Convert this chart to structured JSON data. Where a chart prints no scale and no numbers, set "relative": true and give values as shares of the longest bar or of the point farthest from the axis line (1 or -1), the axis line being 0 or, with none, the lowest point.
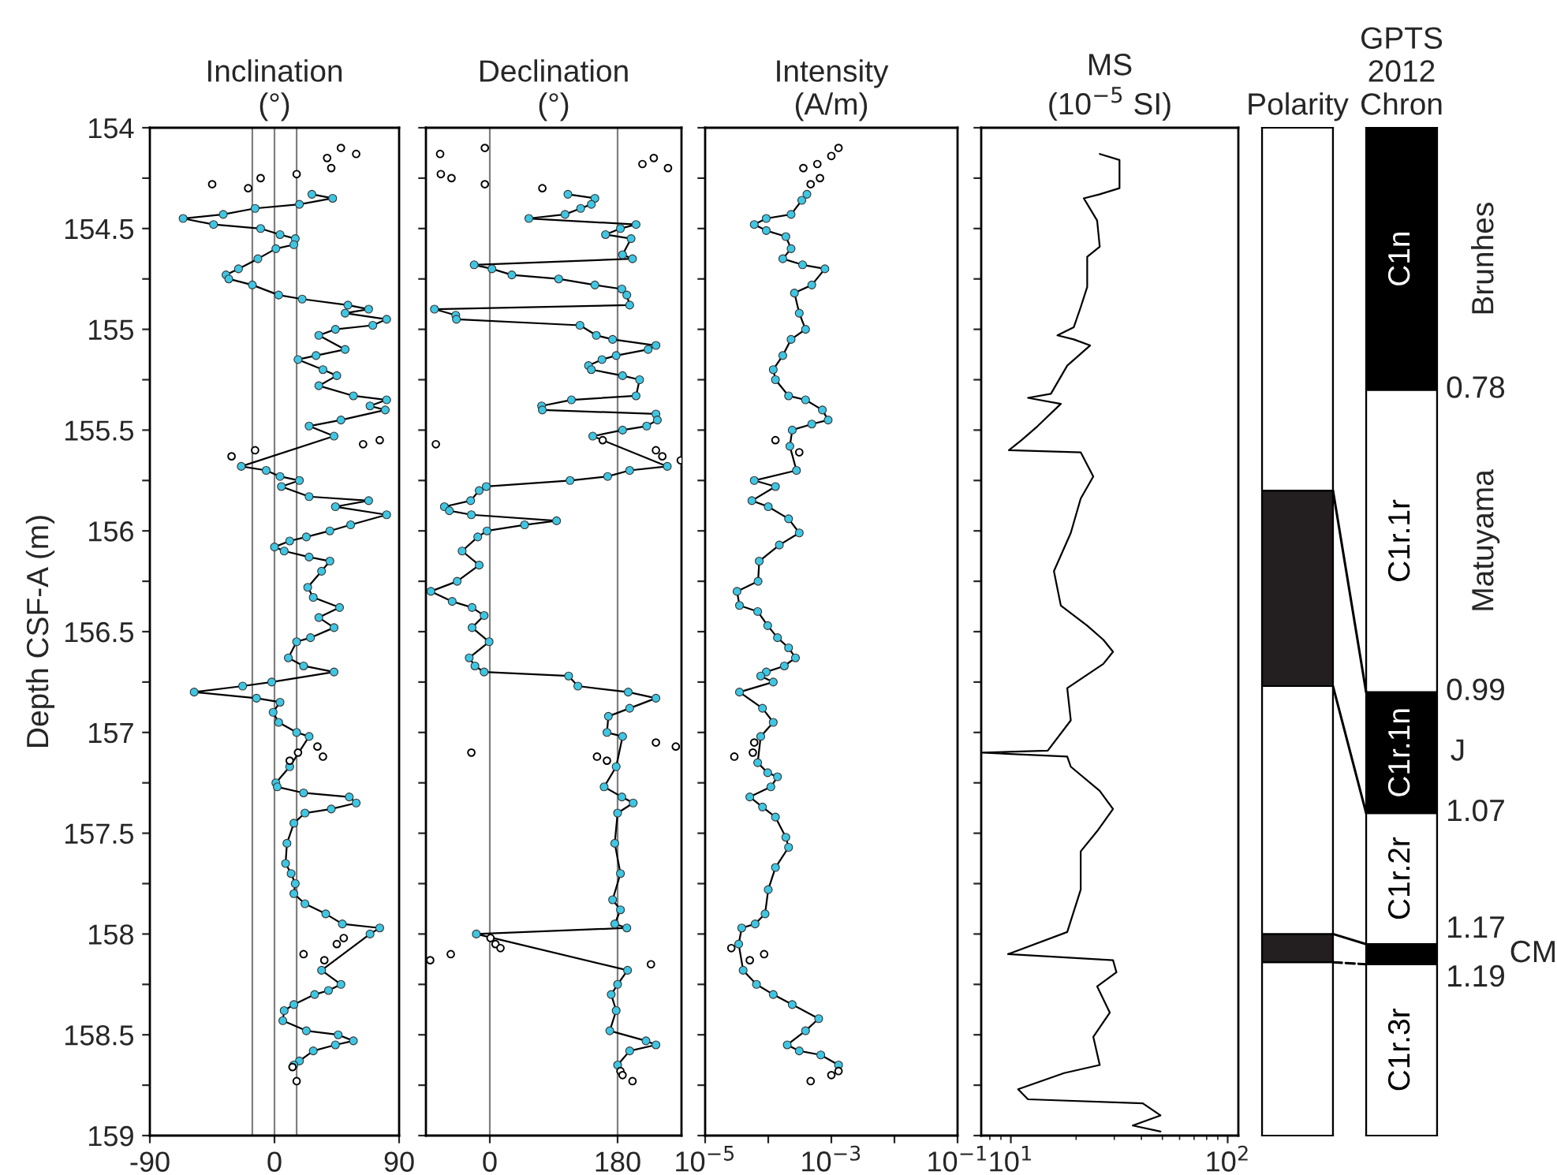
{
  "chart_data": [
    {
      "type": "line",
      "title": "Inclination\n(°)",
      "ylabel": "Depth CSF-A (m)",
      "xlim": [
        -90,
        90
      ],
      "xticks": [
        -90,
        0,
        90
      ],
      "ylim": [
        159,
        154
      ],
      "yticks": [
        154,
        {
          "value": 154.25,
          "label": null
        },
        154.5,
        {
          "value": 154.75,
          "label": null
        },
        155,
        {
          "value": 155.25,
          "label": null
        },
        155.5,
        {
          "value": 155.75,
          "label": null
        },
        156,
        {
          "value": 156.25,
          "label": null
        },
        156.5,
        {
          "value": 156.75,
          "label": null
        },
        157,
        {
          "value": 157.25,
          "label": null
        },
        157.5,
        {
          "value": 157.75,
          "label": null
        },
        158,
        {
          "value": 158.25,
          "label": null
        },
        158.5,
        {
          "value": 158.75,
          "label": null
        },
        159
      ],
      "ref_lines": [
        {
          "axis": "x",
          "value": -16,
          "color": "#808080"
        },
        {
          "axis": "x",
          "value": 0,
          "color": "#808080"
        },
        {
          "axis": "x",
          "value": 16,
          "color": "#808080"
        }
      ],
      "series": [
        {
          "type": "line",
          "color": "#3fc6e3",
          "marker": "circle",
          "x": [
            27,
            42,
            18,
            -14,
            -37,
            -66,
            -44,
            -10,
            4,
            15,
            14,
            1,
            -12,
            -26,
            -35,
            -33,
            -16,
            3,
            20,
            53,
            68,
            51,
            81,
            71,
            44,
            32,
            51,
            30,
            17,
            35,
            45,
            32,
            57,
            81,
            69,
            80,
            48,
            25,
            43,
            -24,
            -6,
            4,
            18,
            5,
            25,
            68,
            44,
            81,
            55,
            40,
            23,
            11,
            0,
            7,
            25,
            40,
            34,
            24,
            28,
            47,
            32,
            43,
            26,
            16,
            10,
            21,
            43,
            -2,
            -23,
            -58,
            -13,
            4,
            -1,
            3,
            16,
            25,
            11,
            1,
            2,
            21,
            54,
            59,
            41,
            22,
            14,
            9,
            8,
            12,
            15,
            14,
            22,
            37,
            49,
            76,
            69,
            34,
            48,
            39,
            29,
            14,
            7,
            6,
            23,
            46,
            57,
            44,
            28,
            18,
            14
          ],
          "values": [
            154.33,
            154.35,
            154.38,
            154.4,
            154.43,
            154.45,
            154.48,
            154.5,
            154.53,
            154.55,
            154.58,
            154.6,
            154.65,
            154.7,
            154.73,
            154.75,
            154.78,
            154.83,
            154.85,
            154.88,
            154.9,
            154.92,
            154.95,
            154.98,
            155.0,
            155.03,
            155.1,
            155.13,
            155.15,
            155.2,
            155.23,
            155.28,
            155.33,
            155.35,
            155.38,
            155.4,
            155.45,
            155.48,
            155.53,
            155.68,
            155.7,
            155.73,
            155.75,
            155.78,
            155.83,
            155.85,
            155.88,
            155.92,
            155.97,
            156.0,
            156.03,
            156.05,
            156.08,
            156.1,
            156.13,
            156.15,
            156.2,
            156.28,
            156.33,
            156.38,
            156.43,
            156.48,
            156.53,
            156.55,
            156.63,
            156.67,
            156.7,
            156.75,
            156.77,
            156.8,
            156.83,
            156.85,
            156.9,
            156.95,
            157.0,
            157.02,
            157.17,
            157.25,
            157.27,
            157.3,
            157.32,
            157.35,
            157.38,
            157.4,
            157.45,
            157.55,
            157.65,
            157.7,
            157.75,
            157.8,
            157.85,
            157.9,
            157.95,
            157.97,
            158.0,
            158.18,
            158.25,
            158.28,
            158.3,
            158.35,
            158.38,
            158.43,
            158.48,
            158.5,
            158.53,
            158.55,
            158.58,
            158.63,
            158.65
          ]
        },
        {
          "type": "scatter",
          "color": "#000000",
          "marker": "circle",
          "x": [
            48,
            59,
            38,
            41,
            16,
            -10,
            -45,
            -19,
            64,
            76,
            -14,
            -31,
            31,
            35,
            17,
            11,
            21,
            45,
            50,
            36,
            13,
            16
          ],
          "values": [
            154.1,
            154.13,
            154.15,
            154.2,
            154.23,
            154.25,
            154.28,
            154.3,
            155.57,
            155.55,
            155.6,
            155.63,
            157.07,
            157.12,
            157.1,
            157.14,
            158.1,
            158.05,
            158.02,
            158.13,
            158.66,
            158.73
          ]
        }
      ]
    },
    {
      "type": "line",
      "title": "Declination\n(°)",
      "xlim": [
        -90,
        270
      ],
      "xticks": [
        0,
        180
      ],
      "ylim": [
        159,
        154
      ],
      "tick_labels": "x",
      "yticks": [
        154,
        {
          "value": 154.25,
          "label": null
        },
        154.5,
        {
          "value": 154.75,
          "label": null
        },
        155,
        {
          "value": 155.25,
          "label": null
        },
        155.5,
        {
          "value": 155.75,
          "label": null
        },
        156,
        {
          "value": 156.25,
          "label": null
        },
        156.5,
        {
          "value": 156.75,
          "label": null
        },
        157,
        {
          "value": 157.25,
          "label": null
        },
        157.5,
        {
          "value": 157.75,
          "label": null
        },
        158,
        {
          "value": 158.25,
          "label": null
        },
        158.5,
        {
          "value": 158.75,
          "label": null
        },
        159
      ],
      "ref_lines": [
        {
          "axis": "x",
          "value": 0,
          "color": "#808080"
        },
        {
          "axis": "x",
          "value": 180,
          "color": "#808080"
        }
      ],
      "series": [
        {
          "type": "line",
          "color": "#3fc6e3",
          "marker": "circle",
          "x": [
            110,
            148,
            143,
            128,
            106,
            55,
            206,
            184,
            163,
            199,
            187,
            201,
            -22,
            3,
            31,
            97,
            148,
            186,
            193,
            197,
            -78,
            -48,
            -47,
            127,
            150,
            173,
            234,
            223,
            178,
            158,
            139,
            143,
            187,
            211,
            206,
            115,
            73,
            74,
            234,
            236,
            221,
            187,
            145,
            250,
            197,
            166,
            113,
            -5,
            -15,
            -27,
            -64,
            -57,
            -26,
            94,
            49,
            -4,
            -17,
            -39,
            -15,
            -46,
            -83,
            -53,
            -25,
            -8,
            -25,
            -1,
            -29,
            -21,
            -8,
            111,
            124,
            195,
            234,
            197,
            167,
            165,
            187,
            178,
            161,
            186,
            202,
            180,
            176,
            184,
            173,
            184,
            176,
            193,
            -19,
            194,
            180,
            171,
            178,
            169,
            220,
            234,
            197,
            180
          ],
          "values": [
            154.33,
            154.35,
            154.38,
            154.4,
            154.43,
            154.45,
            154.48,
            154.5,
            154.53,
            154.55,
            154.63,
            154.65,
            154.68,
            154.7,
            154.73,
            154.75,
            154.78,
            154.8,
            154.83,
            154.88,
            154.9,
            154.93,
            154.95,
            154.98,
            155.03,
            155.05,
            155.08,
            155.1,
            155.13,
            155.15,
            155.18,
            155.2,
            155.23,
            155.25,
            155.33,
            155.35,
            155.38,
            155.4,
            155.42,
            155.45,
            155.48,
            155.5,
            155.53,
            155.68,
            155.7,
            155.73,
            155.75,
            155.78,
            155.8,
            155.85,
            155.88,
            155.9,
            155.92,
            155.95,
            155.97,
            156.0,
            156.03,
            156.1,
            156.17,
            156.25,
            156.3,
            156.35,
            156.38,
            156.42,
            156.48,
            156.55,
            156.63,
            156.67,
            156.7,
            156.72,
            156.77,
            156.8,
            156.83,
            156.88,
            156.92,
            157.0,
            157.02,
            157.17,
            157.27,
            157.32,
            157.35,
            157.4,
            157.55,
            157.7,
            157.83,
            157.88,
            157.95,
            157.97,
            158.0,
            158.18,
            158.25,
            158.3,
            158.38,
            158.48,
            158.53,
            158.55,
            158.58,
            158.65
          ]
        },
        {
          "type": "scatter",
          "color": "#000000",
          "marker": "circle",
          "x": [
            -70,
            -7,
            -69,
            -54,
            -7,
            74,
            215,
            231,
            251,
            -76,
            159,
            234,
            243,
            269,
            -26,
            151,
            165,
            234,
            262,
            -84,
            -55,
            1,
            8,
            15,
            227,
            184,
            187,
            201
          ],
          "values": [
            154.13,
            154.1,
            154.23,
            154.25,
            154.28,
            154.3,
            154.18,
            154.15,
            154.2,
            155.57,
            155.55,
            155.6,
            155.63,
            155.65,
            157.1,
            157.12,
            157.14,
            157.05,
            157.07,
            158.13,
            158.1,
            158.02,
            158.05,
            158.07,
            158.15,
            158.68,
            158.7,
            158.73
          ]
        }
      ]
    },
    {
      "type": "line",
      "title": "Intensity\n(A/m)",
      "log": "x",
      "xlim": [
        1e-05,
        0.1
      ],
      "xticks": [
        {
          "value": 1e-05,
          "label": "10$^{−5}$"
        },
        {
          "value": 0.0001,
          "label": null
        },
        {
          "value": 0.001,
          "label": "10$^{−3}$"
        },
        {
          "value": 0.01,
          "label": null
        },
        {
          "value": 0.1,
          "label": "10$^{−1}$"
        }
      ],
      "ylim": [
        159,
        154
      ],
      "tick_labels": "x",
      "yticks": [
        154,
        {
          "value": 154.25,
          "label": null
        },
        154.5,
        {
          "value": 154.75,
          "label": null
        },
        155,
        {
          "value": 155.25,
          "label": null
        },
        155.5,
        {
          "value": 155.75,
          "label": null
        },
        156,
        {
          "value": 156.25,
          "label": null
        },
        156.5,
        {
          "value": 156.75,
          "label": null
        },
        157,
        {
          "value": 157.25,
          "label": null
        },
        157.5,
        {
          "value": 157.75,
          "label": null
        },
        158,
        {
          "value": 158.25,
          "label": null
        },
        158.5,
        {
          "value": 158.75,
          "label": null
        },
        159
      ],
      "series": [
        {
          "type": "line",
          "color": "#3fc6e3",
          "marker": "circle",
          "x": [
            0.00041,
            0.00034,
            0.00023,
            9.3e-05,
            6e-05,
            9.3e-05,
            0.00019,
            0.00023,
            0.00017,
            0.00035,
            0.00079,
            0.00049,
            0.00026,
            0.00031,
            0.00039,
            0.00023,
            0.00017,
            0.00012,
            0.00013,
            0.00021,
            0.00039,
            0.00072,
            0.00089,
            0.00049,
            0.00024,
            0.00022,
            0.00028,
            6e-05,
            0.00013,
            5.5e-05,
            0.0001,
            0.00021,
            0.00031,
            0.00015,
            7.2e-05,
            6.9e-05,
            3.2e-05,
            3.5e-05,
            6.8e-05,
            9.8e-05,
            0.00014,
            0.00021,
            0.00027,
            0.00018,
            9.3e-05,
            7.6e-05,
            0.00012,
            3.5e-05,
            8.1e-05,
            0.00012,
            7.6e-05,
            6.8e-05,
            9.8e-05,
            0.00014,
            0.00011,
            5.1e-05,
            8.1e-05,
            0.00013,
            0.00019,
            0.00021,
            0.00013,
            0.0001,
            8.9e-05,
            6.2e-05,
            3.8e-05,
            3.4e-05,
            4e-05,
            6.5e-05,
            0.00012,
            0.00024,
            0.00063,
            0.00039,
            0.0002,
            0.00031,
            0.00068,
            0.0013
          ],
          "values": [
            154.33,
            154.36,
            154.43,
            154.45,
            154.48,
            154.51,
            154.54,
            154.6,
            154.65,
            154.68,
            154.7,
            154.78,
            154.82,
            154.92,
            155.0,
            155.05,
            155.13,
            155.2,
            155.25,
            155.33,
            155.35,
            155.4,
            155.45,
            155.47,
            155.5,
            155.58,
            155.7,
            155.75,
            155.78,
            155.85,
            155.88,
            155.94,
            156.01,
            156.07,
            156.15,
            156.25,
            156.3,
            156.37,
            156.4,
            156.47,
            156.53,
            156.58,
            156.63,
            156.67,
            156.7,
            156.72,
            156.75,
            156.8,
            156.88,
            156.95,
            157.02,
            157.15,
            157.2,
            157.22,
            157.27,
            157.32,
            157.37,
            157.42,
            157.52,
            157.57,
            157.67,
            157.78,
            157.9,
            157.95,
            157.97,
            158.05,
            158.18,
            158.25,
            158.3,
            158.35,
            158.42,
            158.48,
            158.55,
            158.58,
            158.6,
            158.65
          ]
        },
        {
          "type": "scatter",
          "color": "#000000",
          "marker": "circle",
          "x": [
            0.0013,
            0.001,
            0.0006,
            0.00036,
            0.00066,
            0.00047,
            0.00013,
            0.00031,
            2.9e-05,
            6e-05,
            5.7e-05,
            2.6e-05,
            5.1e-05,
            8.6e-05,
            0.00047,
            0.001,
            0.0013
          ],
          "values": [
            154.1,
            154.14,
            154.18,
            154.2,
            154.25,
            154.28,
            155.55,
            155.61,
            157.12,
            157.05,
            157.1,
            158.07,
            158.13,
            158.1,
            158.73,
            158.7,
            158.68
          ]
        }
      ]
    },
    {
      "type": "line",
      "title": "MS\n(10$^{−5}$ SI)",
      "log": "x",
      "xlim": [
        7.3,
        112
      ],
      "xticks": [
        {
          "value": 10,
          "label": "10$^{1}$"
        },
        {
          "value": 100,
          "label": "10$^{2}$"
        }
      ],
      "ylim": [
        159,
        154
      ],
      "tick_labels": "x",
      "yticks": [
        154,
        {
          "value": 154.25,
          "label": null
        },
        154.5,
        {
          "value": 154.75,
          "label": null
        },
        155,
        {
          "value": 155.25,
          "label": null
        },
        155.5,
        {
          "value": 155.75,
          "label": null
        },
        156,
        {
          "value": 156.25,
          "label": null
        },
        156.5,
        {
          "value": 156.75,
          "label": null
        },
        157,
        {
          "value": 157.25,
          "label": null
        },
        157.5,
        {
          "value": 157.75,
          "label": null
        },
        158,
        {
          "value": 158.25,
          "label": null
        },
        158.5,
        {
          "value": 158.75,
          "label": null
        },
        159
      ],
      "series": [
        {
          "type": "line",
          "color": "#000000",
          "marker": "none",
          "x": [
            25.7,
            31.7,
            31.7,
            25.7,
            21.7,
            25.0,
            25.7,
            22.5,
            22.5,
            21.0,
            19.5,
            16.4,
            19.5,
            23.2,
            18.2,
            15.3,
            12.0,
            17.0,
            13.3,
            11.2,
            9.8,
            21.0,
            24.0,
            21.0,
            18.9,
            15.8,
            17.0,
            22.5,
            26.7,
            29.6,
            26.7,
            18.2,
            18.9,
            14.8,
            7.4,
            18.2,
            18.9,
            25.7,
            29.6,
            25.0,
            21.0,
            21.0,
            18.2,
            9.7,
            29.6,
            30.7,
            25.0,
            28.6,
            24.0,
            25.7,
            17.6,
            10.8,
            12.0,
            40.6,
            49.0,
            36.5,
            49.0
          ],
          "values": [
            154.13,
            154.16,
            154.3,
            154.33,
            154.35,
            154.46,
            154.59,
            154.64,
            154.79,
            154.89,
            154.99,
            155.03,
            155.05,
            155.08,
            155.18,
            155.32,
            155.34,
            155.37,
            155.48,
            155.55,
            155.6,
            155.61,
            155.73,
            155.84,
            156.01,
            156.2,
            156.37,
            156.47,
            156.54,
            156.6,
            156.66,
            156.78,
            156.94,
            157.09,
            157.1,
            157.12,
            157.17,
            157.29,
            157.38,
            157.49,
            157.59,
            157.78,
            157.99,
            158.1,
            158.13,
            158.19,
            158.26,
            158.39,
            158.51,
            158.65,
            158.69,
            158.77,
            158.82,
            158.84,
            158.9,
            158.95,
            158.98
          ]
        }
      ]
    },
    {
      "type": "bar",
      "title": "Polarity",
      "stacked": true,
      "relative": true,
      "categories": [
        null
      ],
      "series": [
        {
          "color": "#ffffff",
          "values": [
            0.172
          ]
        },
        {
          "color": "#231f20",
          "values": [
            0.028
          ]
        },
        {
          "color": "#ffffff",
          "values": [
            0.246
          ]
        },
        {
          "color": "#231f20",
          "values": [
            0.194
          ]
        },
        {
          "color": "#ffffff",
          "values": [
            0.36
          ]
        }
      ]
    },
    {
      "type": "bar",
      "title": "GPTS\n2012\nChron",
      "stacked": true,
      "relative": true,
      "categories": [
        null
      ],
      "series": [
        {
          "name": "C1r.3r",
          "color": "#ffffff",
          "values": [
            0.17
          ]
        },
        {
          "name": "CM",
          "color": "#000000",
          "values": [
            0.02
          ]
        },
        {
          "name": "C1r.2r",
          "color": "#ffffff",
          "values": [
            0.13
          ]
        },
        {
          "name": "C1r.1n",
          "color": "#000000",
          "values": [
            0.12
          ]
        },
        {
          "name": "C1r.1r",
          "color": "#ffffff",
          "values": [
            0.3
          ]
        },
        {
          "name": "C1n",
          "color": "#000000",
          "values": [
            0.26
          ]
        }
      ],
      "annotations": [
        "Brunhes",
        "0.78",
        "Matuyama",
        "0.99",
        "J",
        "1.07",
        "1.17",
        "1.19"
      ]
    }
  ]
}
